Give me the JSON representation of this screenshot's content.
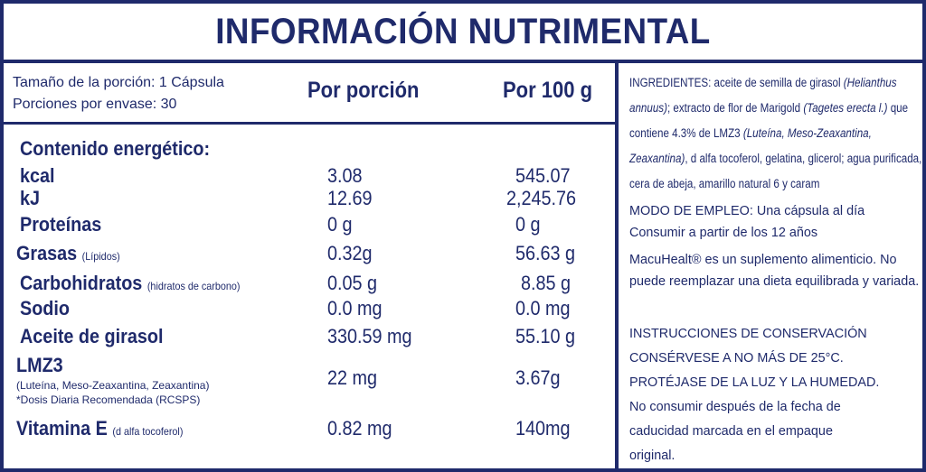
{
  "title": "INFORMACIÓN NUTRIMENTAL",
  "serving": {
    "size": "Tamaño de la porción: 1 Cápsula",
    "per_container": "Porciones por envase: 30"
  },
  "columns": {
    "per_serving": "Por porción",
    "per_100g": "Por 100 g"
  },
  "energy_header": "Contenido energético:",
  "rows": [
    {
      "label": "kcal",
      "sub": "",
      "per_serving": "3.08",
      "per_100g": "545.07"
    },
    {
      "label": "kJ",
      "sub": "",
      "per_serving": "12.69",
      "per_100g": "2,245.76"
    },
    {
      "label": "Proteínas",
      "sub": "",
      "per_serving": "0 g",
      "per_100g": "0 g"
    },
    {
      "label": "Grasas",
      "sub": "(Lípidos)",
      "per_serving": "0.32g",
      "per_100g": "56.63 g"
    },
    {
      "label": "Carbohidratos",
      "sub": "(hidratos de carbono)",
      "per_serving": "0.05 g",
      "per_100g": "8.85 g"
    },
    {
      "label": "Sodio",
      "sub": "",
      "per_serving": "0.0 mg",
      "per_100g": "0.0 mg"
    },
    {
      "label": "Aceite de girasol",
      "sub": "",
      "per_serving": "330.59 mg",
      "per_100g": "55.10 g"
    },
    {
      "label": "LMZ3",
      "sub": "",
      "per_serving": "22 mg",
      "per_100g": "3.67g"
    },
    {
      "label": "Vitamina E",
      "sub": "(d alfa tocoferol)",
      "per_serving": "0.82 mg",
      "per_100g": "140mg"
    }
  ],
  "lmz3_note": "(Luteína, Meso-Zeaxantina,  Zeaxantina)",
  "dosis_note": "*Dosis Diaria Recomendada (RCSPS)",
  "ingredients": {
    "p1": "INGREDIENTES: aceite de semilla de girasol ",
    "i1": "(Helianthus annuus)",
    "p2": "; extracto de flor de Marigold ",
    "i2": "(Tagetes erecta l.)",
    "p3": " que contiene 4.3% de LMZ3 ",
    "i3": "(Luteína, Meso-Zeaxantina, Zeaxantina)",
    "p4": ", d alfa tocoferol, gelatina, glicerol; agua purificada, cera de abeja, amarillo natural 6 y caram"
  },
  "modo_empleo": {
    "line1": "MODO DE EMPLEO: Una cápsula al día",
    "line2": "Consumir a partir de los 12 años"
  },
  "macuhealt": "MacuHealt® es un suplemento alimenticio. No puede reemplazar una dieta equilibrada y variada.",
  "conservacion": {
    "line1": "INSTRUCCIONES DE CONSERVACIÓN",
    "line2": "CONSÉRVESE A NO MÁS DE 25°C.",
    "line3": "PROTÉJASE DE LA LUZ Y LA HUMEDAD.",
    "line4": "No consumir después de la fecha de caducidad marcada en el empaque original."
  }
}
